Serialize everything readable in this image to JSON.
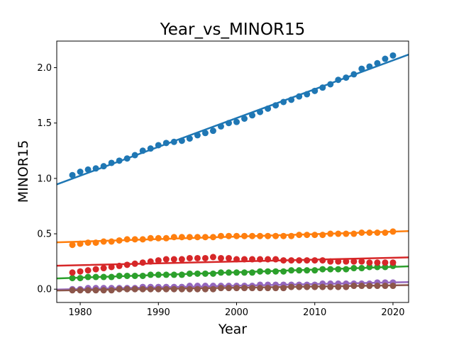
{
  "chart_data": {
    "type": "scatter",
    "title": "Year_vs_MINOR15",
    "xlabel": "Year",
    "ylabel": "MINOR15",
    "xlim": [
      1977,
      2022
    ],
    "ylim": [
      -0.12,
      2.24
    ],
    "xticks": [
      1980,
      1990,
      2000,
      2010,
      2020
    ],
    "xtick_labels": [
      "1980",
      "1990",
      "2000",
      "2010",
      "2020"
    ],
    "yticks": [
      0.0,
      0.5,
      1.0,
      1.5,
      2.0
    ],
    "ytick_labels": [
      "0.0",
      "0.5",
      "1.0",
      "1.5",
      "2.0"
    ],
    "grid": false,
    "x": [
      1979,
      1980,
      1981,
      1982,
      1983,
      1984,
      1985,
      1986,
      1987,
      1988,
      1989,
      1990,
      1991,
      1992,
      1993,
      1994,
      1995,
      1996,
      1997,
      1998,
      1999,
      2000,
      2001,
      2002,
      2003,
      2004,
      2005,
      2006,
      2007,
      2008,
      2009,
      2010,
      2011,
      2012,
      2013,
      2014,
      2015,
      2016,
      2017,
      2018,
      2019,
      2020
    ],
    "series": [
      {
        "color": "#1f77b4",
        "values": [
          1.03,
          1.06,
          1.08,
          1.09,
          1.11,
          1.14,
          1.16,
          1.18,
          1.21,
          1.25,
          1.27,
          1.3,
          1.32,
          1.33,
          1.34,
          1.36,
          1.39,
          1.41,
          1.43,
          1.47,
          1.5,
          1.51,
          1.54,
          1.57,
          1.6,
          1.63,
          1.66,
          1.69,
          1.71,
          1.74,
          1.76,
          1.79,
          1.82,
          1.85,
          1.89,
          1.91,
          1.94,
          1.99,
          2.01,
          2.04,
          2.08,
          2.11
        ],
        "trend": [
          0.946,
          2.118
        ]
      },
      {
        "color": "#ff7f0e",
        "values": [
          0.4,
          0.41,
          0.42,
          0.42,
          0.43,
          0.43,
          0.44,
          0.45,
          0.45,
          0.45,
          0.46,
          0.46,
          0.46,
          0.47,
          0.47,
          0.47,
          0.47,
          0.47,
          0.47,
          0.48,
          0.48,
          0.48,
          0.48,
          0.48,
          0.48,
          0.48,
          0.48,
          0.48,
          0.48,
          0.49,
          0.49,
          0.49,
          0.49,
          0.5,
          0.5,
          0.5,
          0.5,
          0.51,
          0.51,
          0.51,
          0.51,
          0.52
        ],
        "trend": [
          0.423,
          0.524
        ]
      },
      {
        "color": "#2ca02c",
        "values": [
          0.1,
          0.1,
          0.11,
          0.11,
          0.11,
          0.11,
          0.12,
          0.12,
          0.12,
          0.12,
          0.13,
          0.13,
          0.13,
          0.13,
          0.13,
          0.14,
          0.14,
          0.14,
          0.14,
          0.15,
          0.15,
          0.15,
          0.15,
          0.15,
          0.16,
          0.16,
          0.16,
          0.16,
          0.17,
          0.17,
          0.17,
          0.17,
          0.18,
          0.18,
          0.18,
          0.18,
          0.19,
          0.19,
          0.2,
          0.2,
          0.2,
          0.21
        ],
        "trend": [
          0.097,
          0.206
        ]
      },
      {
        "color": "#d62728",
        "values": [
          0.15,
          0.16,
          0.17,
          0.18,
          0.19,
          0.2,
          0.21,
          0.22,
          0.23,
          0.24,
          0.25,
          0.26,
          0.27,
          0.27,
          0.27,
          0.28,
          0.28,
          0.28,
          0.29,
          0.28,
          0.28,
          0.27,
          0.27,
          0.27,
          0.27,
          0.27,
          0.27,
          0.26,
          0.26,
          0.26,
          0.26,
          0.26,
          0.26,
          0.25,
          0.25,
          0.25,
          0.25,
          0.25,
          0.24,
          0.24,
          0.24,
          0.24
        ],
        "trend": [
          0.212,
          0.287
        ]
      },
      {
        "color": "#9467bd",
        "values": [
          0.0,
          0.0,
          0.01,
          0.01,
          0.01,
          0.01,
          0.01,
          0.01,
          0.01,
          0.02,
          0.02,
          0.02,
          0.02,
          0.02,
          0.02,
          0.03,
          0.03,
          0.03,
          0.03,
          0.03,
          0.03,
          0.03,
          0.03,
          0.03,
          0.04,
          0.04,
          0.04,
          0.04,
          0.04,
          0.04,
          0.04,
          0.04,
          0.05,
          0.05,
          0.05,
          0.05,
          0.05,
          0.05,
          0.05,
          0.06,
          0.06,
          0.06
        ],
        "trend": [
          -0.003,
          0.064
        ]
      },
      {
        "color": "#8c564b",
        "values": [
          -0.01,
          -0.01,
          -0.01,
          -0.01,
          -0.01,
          -0.01,
          0.0,
          0.0,
          0.0,
          0.0,
          0.0,
          0.0,
          0.0,
          0.0,
          0.0,
          0.0,
          0.0,
          0.0,
          0.0,
          0.01,
          0.01,
          0.01,
          0.01,
          0.01,
          0.01,
          0.01,
          0.01,
          0.01,
          0.02,
          0.02,
          0.02,
          0.02,
          0.02,
          0.02,
          0.02,
          0.02,
          0.03,
          0.03,
          0.03,
          0.03,
          0.03,
          0.03
        ],
        "trend": [
          -0.012,
          0.037
        ]
      }
    ]
  }
}
